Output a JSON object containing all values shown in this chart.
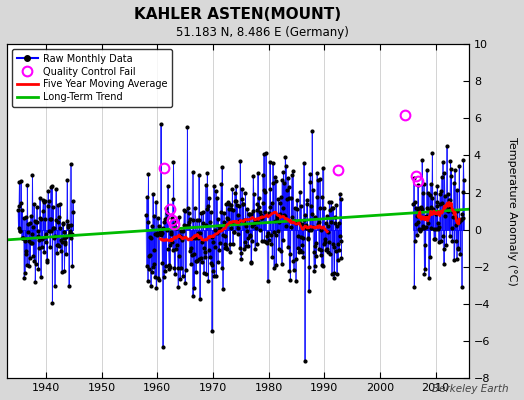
{
  "title": "KAHLER ASTEN(MOUNT)",
  "subtitle": "51.183 N, 8.486 E (Germany)",
  "ylabel": "Temperature Anomaly (°C)",
  "watermark": "Berkeley Earth",
  "xlim": [
    1933,
    2016
  ],
  "ylim": [
    -8,
    10
  ],
  "yticks": [
    -8,
    -6,
    -4,
    -2,
    0,
    2,
    4,
    6,
    8,
    10
  ],
  "xticks": [
    1940,
    1950,
    1960,
    1970,
    1980,
    1990,
    2000,
    2010
  ],
  "fig_bg": "#d8d8d8",
  "plot_bg": "#ffffff",
  "raw_color": "#0000ff",
  "ma_color": "#ff0000",
  "trend_color": "#00bb00",
  "qc_color": "#ff00ff",
  "seed": 42,
  "seg1_start": 1935.0,
  "seg1_end": 1944.9,
  "seg2_start": 1958.0,
  "seg2_end": 1993.0,
  "seg3_start": 2006.0,
  "seg3_end": 2015.0,
  "trend_x": [
    1933,
    2016
  ],
  "trend_y": [
    -0.55,
    1.1
  ],
  "qc_years": [
    1961.3,
    1962.2,
    1962.6,
    1963.0,
    1992.4,
    2004.5,
    2006.5,
    2006.9
  ],
  "qc_vals": [
    3.3,
    1.1,
    0.5,
    0.3,
    3.2,
    6.2,
    2.9,
    2.6
  ]
}
